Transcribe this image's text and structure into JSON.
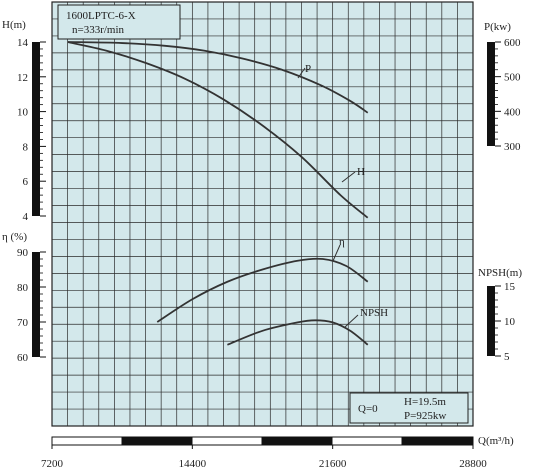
{
  "chart_data": {
    "type": "line",
    "title": "1600LPTC-6-X",
    "subtitle": "n=333r/min",
    "xlabel": "Q(m³/h)",
    "x_ticks": [
      "7200",
      "14400",
      "21600",
      "28800"
    ],
    "xlim": [
      7200,
      28800
    ],
    "axes": {
      "H": {
        "label": "H(m)",
        "ticks": [
          "4",
          "6",
          "8",
          "10",
          "12",
          "14"
        ],
        "range": [
          4,
          14
        ]
      },
      "P": {
        "label": "P(kw)",
        "ticks": [
          "300",
          "400",
          "500",
          "600"
        ],
        "range": [
          300,
          600
        ]
      },
      "eta": {
        "label": "η (%)",
        "ticks": [
          "60",
          "70",
          "80",
          "90"
        ],
        "range": [
          60,
          90
        ]
      },
      "NPSH": {
        "label": "NPSH(m)",
        "ticks": [
          "5",
          "10",
          "15"
        ],
        "range": [
          5,
          15
        ]
      }
    },
    "series": [
      {
        "name": "P",
        "axis": "P",
        "x": [
          8000,
          10800,
          13000,
          15000,
          17000,
          19000,
          21000,
          22500,
          23400
        ],
        "values": [
          600,
          597,
          589,
          575,
          552,
          520,
          475,
          430,
          396
        ]
      },
      {
        "name": "H",
        "axis": "H",
        "x": [
          8000,
          10000,
          12000,
          14000,
          16000,
          18000,
          20000,
          22000,
          23400
        ],
        "values": [
          14,
          13.5,
          12.8,
          11.9,
          10.7,
          9.2,
          7.4,
          5.2,
          3.9
        ]
      },
      {
        "name": "η",
        "axis": "eta",
        "x": [
          12600,
          14400,
          16200,
          18000,
          19800,
          21100,
          22300,
          23400
        ],
        "values": [
          70,
          76.5,
          81.5,
          85,
          87.5,
          88,
          86,
          81.5
        ]
      },
      {
        "name": "NPSH",
        "axis": "NPSH",
        "x": [
          16200,
          18000,
          19800,
          20700,
          21600,
          22500,
          23400
        ],
        "values": [
          6.6,
          8.6,
          9.8,
          10.1,
          9.8,
          8.6,
          6.6
        ]
      }
    ],
    "annotations": [
      "Q=0",
      "H=19.5m",
      "P=925kw"
    ],
    "grid": true
  },
  "colors": {
    "plot_bg": "#d3e8eb",
    "grid_line": "#2a2a2a",
    "curve": "#333333",
    "bar_dark": "#111111"
  }
}
